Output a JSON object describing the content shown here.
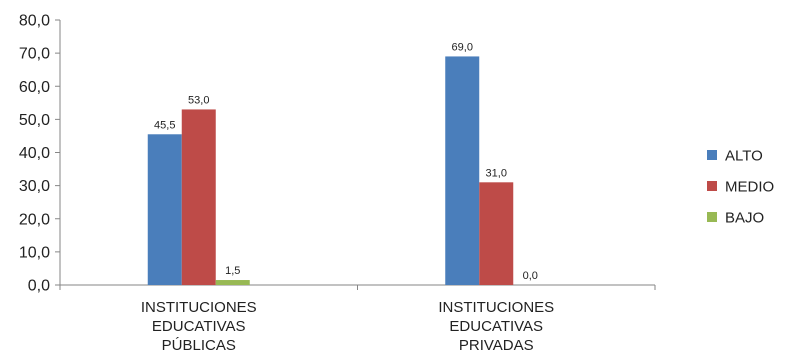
{
  "chart_data": {
    "type": "bar",
    "categories": [
      [
        "INSTITUCIONES",
        "EDUCATIVAS",
        "PÚBLICAS"
      ],
      [
        "INSTITUCIONES",
        "EDUCATIVAS",
        "PRIVADAS"
      ]
    ],
    "series": [
      {
        "name": "ALTO",
        "values": [
          45.5,
          69.0
        ],
        "labels": [
          "45,5",
          "69,0"
        ],
        "color": "#4a7ebb"
      },
      {
        "name": "MEDIO",
        "values": [
          53.0,
          31.0
        ],
        "labels": [
          "53,0",
          "31,0"
        ],
        "color": "#be4b48"
      },
      {
        "name": "BAJO",
        "values": [
          1.5,
          0.0
        ],
        "labels": [
          "1,5",
          "0,0"
        ],
        "color": "#98b954"
      }
    ],
    "ylim": [
      0,
      80
    ],
    "yticks": [
      0,
      10,
      20,
      30,
      40,
      50,
      60,
      70,
      80
    ],
    "ytick_labels": [
      "0,0",
      "10,0",
      "20,0",
      "30,0",
      "40,0",
      "50,0",
      "60,0",
      "70,0",
      "80,0"
    ],
    "grid": false,
    "legend_position": "right",
    "axis_color": "#868686"
  }
}
